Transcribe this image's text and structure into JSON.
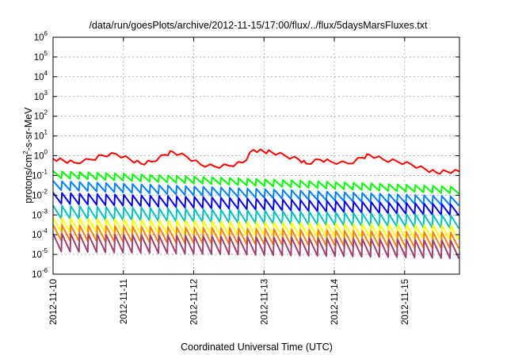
{
  "chart_data": {
    "type": "line",
    "title": "/data/run/goesPlots/archive/2012-11-15/17:00/flux/../flux/5daysMarsFluxes.txt",
    "xlabel": "Coordinated Universal Time (UTC)",
    "ylabel": "protons/cm2-s-sr-MeV",
    "ylabel_parts": {
      "pre": "protons/cm",
      "sup": "2",
      "post": "-s-sr-MeV"
    },
    "x_ticks": [
      "2012-11-10",
      "2012-11-11",
      "2012-11-12",
      "2012-11-13",
      "2012-11-14",
      "2012-11-15"
    ],
    "xlim_days": [
      0,
      5.78
    ],
    "ylim_exp": [
      -6,
      6
    ],
    "y_scale": "log",
    "y_ticks": [
      {
        "base": "10",
        "exp": "-6"
      },
      {
        "base": "10",
        "exp": "-5"
      },
      {
        "base": "10",
        "exp": "-4"
      },
      {
        "base": "10",
        "exp": "-3"
      },
      {
        "base": "10",
        "exp": "-2"
      },
      {
        "base": "10",
        "exp": "-1"
      },
      {
        "base": "10",
        "exp": "0"
      },
      {
        "base": "10",
        "exp": "1"
      },
      {
        "base": "10",
        "exp": "2"
      },
      {
        "base": "10",
        "exp": "3"
      },
      {
        "base": "10",
        "exp": "4"
      },
      {
        "base": "10",
        "exp": "5"
      },
      {
        "base": "10",
        "exp": "6"
      }
    ],
    "grid": true,
    "series": [
      {
        "color": "#ff0000",
        "style": "trend",
        "points_log10": [
          [
            0.0,
            -0.15
          ],
          [
            0.15,
            -0.25
          ],
          [
            0.3,
            -0.35
          ],
          [
            0.55,
            -0.2
          ],
          [
            0.7,
            0.02
          ],
          [
            0.9,
            0.08
          ],
          [
            1.1,
            -0.2
          ],
          [
            1.25,
            -0.4
          ],
          [
            1.4,
            -0.3
          ],
          [
            1.6,
            0.05
          ],
          [
            1.7,
            0.2
          ],
          [
            1.9,
            -0.05
          ],
          [
            2.1,
            -0.45
          ],
          [
            2.3,
            -0.55
          ],
          [
            2.5,
            -0.5
          ],
          [
            2.7,
            -0.35
          ],
          [
            2.85,
            0.3
          ],
          [
            3.0,
            0.2
          ],
          [
            3.1,
            0.2
          ],
          [
            3.3,
            0.0
          ],
          [
            3.5,
            -0.2
          ],
          [
            3.6,
            -0.4
          ],
          [
            3.8,
            -0.2
          ],
          [
            3.95,
            -0.3
          ],
          [
            4.2,
            -0.4
          ],
          [
            4.4,
            -0.1
          ],
          [
            4.5,
            0.05
          ],
          [
            4.7,
            -0.2
          ],
          [
            4.9,
            -0.3
          ],
          [
            5.1,
            -0.45
          ],
          [
            5.3,
            -0.7
          ],
          [
            5.45,
            -0.85
          ],
          [
            5.6,
            -0.8
          ],
          [
            5.78,
            -0.8
          ]
        ]
      },
      {
        "color": "#00ff00",
        "style": "sawtooth",
        "start_log10": -0.95,
        "end_log10": -1.75,
        "amp": 0.35
      },
      {
        "color": "#0080ff",
        "style": "sawtooth",
        "start_log10": -1.5,
        "end_log10": -2.3,
        "amp": 0.45
      },
      {
        "color": "#0000ee",
        "style": "sawtooth",
        "start_log10": -2.15,
        "end_log10": -2.75,
        "amp": 0.55
      },
      {
        "color": "#00c0c0",
        "style": "sawtooth",
        "start_log10": -2.85,
        "end_log10": -3.35,
        "amp": 0.65
      },
      {
        "color": "#ffff00",
        "style": "sawtooth",
        "start_log10": -3.5,
        "end_log10": -3.9,
        "amp": 0.7
      },
      {
        "color": "#ff8000",
        "style": "sawtooth",
        "start_log10": -3.9,
        "end_log10": -4.3,
        "amp": 0.8
      },
      {
        "color": "#a04070",
        "style": "sawtooth",
        "start_log10": -4.4,
        "end_log10": -4.75,
        "amp": 0.9
      }
    ],
    "sawtooth_teeth": 46
  }
}
